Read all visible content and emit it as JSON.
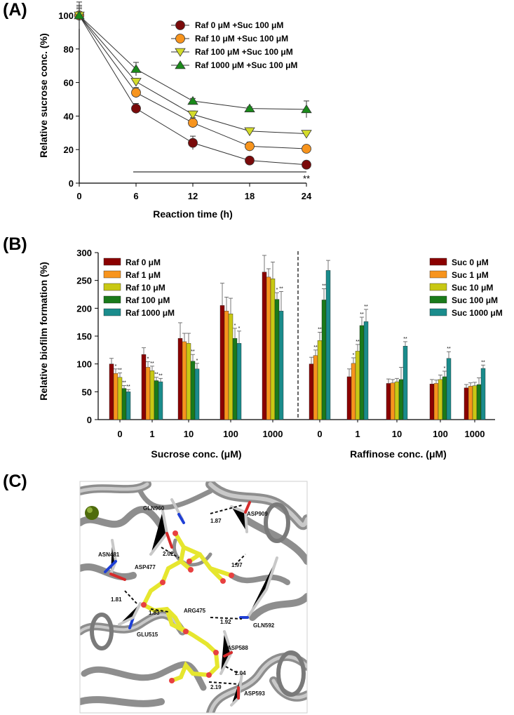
{
  "figure": {
    "panel_labels": [
      "(A)",
      "(B)",
      "(C)"
    ]
  },
  "chart_data": [
    {
      "id": "A",
      "type": "line",
      "title": "",
      "xlabel": "Reaction time (h)",
      "ylabel": "Relative sucrose conc. (%)",
      "x": [
        0,
        6,
        12,
        18,
        24
      ],
      "xlim": [
        0,
        24
      ],
      "ylim": [
        0,
        100
      ],
      "yticks": [
        0,
        20,
        40,
        60,
        80,
        100
      ],
      "legend_position": "top-right",
      "series": [
        {
          "name": "Raf 0 μM +Suc 100 μM",
          "marker": "circle",
          "color": "#7a0a0a",
          "values": [
            100,
            44.5,
            24,
            13.5,
            11
          ],
          "errors": [
            8,
            3,
            4,
            1.5,
            1
          ]
        },
        {
          "name": "Raf 10 μM +Suc 100 μM",
          "marker": "circle",
          "color": "#f7941d",
          "values": [
            100,
            54,
            36,
            22,
            20.5
          ],
          "errors": [
            6,
            3,
            3,
            2.5,
            2
          ]
        },
        {
          "name": "Raf 100 μM +Suc 100 μM",
          "marker": "triangle-down",
          "color": "#d4dc2a",
          "values": [
            100,
            60.5,
            41,
            31,
            29.5
          ],
          "errors": [
            5,
            2,
            2,
            2,
            1.5
          ]
        },
        {
          "name": "Raf 1000 μM +Suc 100 μM",
          "marker": "triangle-up",
          "color": "#1a8a1a",
          "values": [
            100,
            68,
            49,
            44.5,
            44
          ],
          "errors": [
            4,
            4,
            1.5,
            1,
            5
          ]
        }
      ],
      "annotations": [
        {
          "text": "**",
          "x": 24,
          "y": 3
        }
      ]
    },
    {
      "id": "B",
      "type": "bar",
      "title": "",
      "ylabel": "Relative biofilm formation (%)",
      "ylim": [
        0,
        300
      ],
      "yticks": [
        0,
        50,
        100,
        150,
        200,
        250,
        300
      ],
      "groups": [
        {
          "xlabel": "Sucrose conc. (μM)",
          "categories": [
            "0",
            "1",
            "10",
            "100",
            "1000"
          ],
          "series": [
            {
              "name": "Raf 0 μM",
              "color": "#8b0000",
              "values": [
                100,
                117,
                146,
                205,
                265
              ],
              "errors": [
                10,
                12,
                28,
                40,
                30
              ],
              "sig": [
                "",
                "",
                "",
                "",
                ""
              ]
            },
            {
              "name": "Raf 1 μM",
              "color": "#f7941d",
              "values": [
                83,
                94,
                140,
                195,
                256
              ],
              "errors": [
                8,
                10,
                15,
                25,
                15
              ],
              "sig": [
                "*",
                "*",
                "",
                "",
                ""
              ]
            },
            {
              "name": "Raf 10 μM",
              "color": "#c8c814",
              "values": [
                76,
                88,
                137,
                190,
                253
              ],
              "errors": [
                8,
                8,
                18,
                28,
                30
              ],
              "sig": [
                "**",
                "**",
                "",
                "",
                ""
              ]
            },
            {
              "name": "Raf 100 μM",
              "color": "#1a7a1a",
              "values": [
                56,
                70,
                105,
                146,
                216
              ],
              "errors": [
                5,
                6,
                12,
                18,
                12
              ],
              "sig": [
                "**",
                "**",
                "**",
                "*",
                "*"
              ]
            },
            {
              "name": "Raf 1000 μM",
              "color": "#1a8c8c",
              "values": [
                50,
                68,
                91,
                137,
                195
              ],
              "errors": [
                4,
                6,
                10,
                22,
                35
              ],
              "sig": [
                "**",
                "**",
                "*",
                "*",
                "**"
              ]
            }
          ]
        },
        {
          "xlabel": "Raffinose conc. (μM)",
          "categories": [
            "0",
            "1",
            "10",
            "100",
            "1000"
          ],
          "series": [
            {
              "name": "Suc 0 μM",
              "color": "#8b0000",
              "values": [
                100,
                77,
                65,
                64,
                57
              ],
              "errors": [
                12,
                14,
                8,
                8,
                6
              ],
              "sig": [
                "",
                "",
                "",
                "",
                ""
              ]
            },
            {
              "name": "Suc 1 μM",
              "color": "#f7941d",
              "values": [
                115,
                101,
                66,
                65,
                60
              ],
              "errors": [
                10,
                10,
                6,
                6,
                6
              ],
              "sig": [
                "**",
                "*",
                "",
                "",
                ""
              ]
            },
            {
              "name": "Suc 10 μM",
              "color": "#c8c814",
              "values": [
                142,
                123,
                68,
                72,
                61
              ],
              "errors": [
                15,
                12,
                6,
                8,
                6
              ],
              "sig": [
                "**",
                "**",
                "",
                "",
                ""
              ]
            },
            {
              "name": "Suc 100 μM",
              "color": "#1a7a1a",
              "values": [
                215,
                169,
                72,
                77,
                63
              ],
              "errors": [
                20,
                15,
                22,
                10,
                12
              ],
              "sig": [
                "**",
                "**",
                "",
                "*",
                ""
              ]
            },
            {
              "name": "Suc 1000 μM",
              "color": "#1a8c8c",
              "values": [
                268,
                176,
                132,
                110,
                92
              ],
              "errors": [
                18,
                22,
                8,
                12,
                6
              ],
              "sig": [
                "",
                "**",
                "**",
                "**",
                "**"
              ]
            }
          ]
        }
      ]
    }
  ],
  "panel_c": {
    "residue_labels": [
      "GLN960",
      "ASP909",
      "ASN481",
      "ASP477",
      "ARG475",
      "GLN592",
      "GLU515",
      "ASP588",
      "ASP593"
    ],
    "distance_labels": [
      "1.87",
      "2.02",
      "1.97",
      "1.81",
      "1.83",
      "1.92",
      "2.04",
      "2.19"
    ]
  }
}
